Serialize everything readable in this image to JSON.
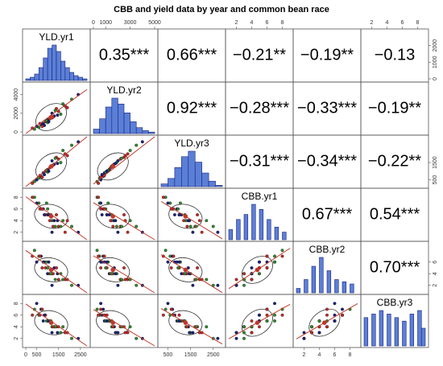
{
  "chart_data": {
    "type": "pairs",
    "title": "CBB and yield data by year and common bean race",
    "variables": [
      "YLD.yr1",
      "YLD.yr2",
      "YLD.yr3",
      "CBB.yr1",
      "CBB.yr2",
      "CBB.yr3"
    ],
    "ranges": [
      [
        0,
        2800
      ],
      [
        0,
        5000
      ],
      [
        200,
        2900
      ],
      [
        1,
        9
      ],
      [
        1,
        9
      ],
      [
        1,
        9
      ]
    ],
    "ticks_x": [
      [
        0,
        500,
        1500,
        2500
      ],
      [
        0,
        1000,
        3000,
        5000
      ],
      [
        500,
        1500,
        2500
      ],
      [
        2,
        4,
        6,
        8
      ],
      [
        2,
        4,
        6,
        8
      ],
      [
        2,
        4,
        6,
        8
      ]
    ],
    "ticks_y": [
      [
        0,
        1000,
        2000
      ],
      [
        0,
        2000,
        4000
      ],
      [
        500,
        1500
      ],
      [
        2,
        4,
        6,
        8
      ],
      [
        2,
        4,
        6
      ],
      [
        2,
        4,
        6,
        8
      ]
    ],
    "correlations": [
      [
        {
          "value": 0.35,
          "label": "0.35***"
        },
        {
          "value": 0.66,
          "label": "0.66***"
        },
        {
          "value": -0.21,
          "label": "−0.21**"
        },
        {
          "value": -0.19,
          "label": "−0.19**"
        },
        {
          "value": -0.13,
          "label": "−0.13"
        }
      ],
      [
        {
          "value": 0.92,
          "label": "0.92***"
        },
        {
          "value": -0.28,
          "label": "−0.28***"
        },
        {
          "value": -0.33,
          "label": "−0.33***"
        },
        {
          "value": -0.19,
          "label": "−0.19**"
        }
      ],
      [
        {
          "value": -0.31,
          "label": "−0.31***"
        },
        {
          "value": -0.34,
          "label": "−0.34***"
        },
        {
          "value": -0.22,
          "label": "−0.22**"
        }
      ],
      [
        {
          "value": 0.67,
          "label": "0.67***"
        },
        {
          "value": 0.54,
          "label": "0.54***"
        }
      ],
      [
        {
          "value": 0.7,
          "label": "0.70***"
        }
      ]
    ],
    "histograms": [
      {
        "bins": [
          0,
          200,
          400,
          600,
          800,
          1000,
          1200,
          1400,
          1600,
          1800,
          2000,
          2200,
          2400,
          2600,
          2800
        ],
        "counts": [
          1,
          2,
          4,
          8,
          14,
          20,
          22,
          18,
          12,
          8,
          5,
          3,
          2,
          1
        ]
      },
      {
        "bins": [
          0,
          500,
          1000,
          1500,
          2000,
          2500,
          3000,
          3500,
          4000,
          4500,
          5000
        ],
        "counts": [
          3,
          10,
          18,
          24,
          20,
          14,
          8,
          4,
          2,
          1
        ]
      },
      {
        "bins": [
          200,
          500,
          800,
          1100,
          1400,
          1700,
          2000,
          2300,
          2600,
          2900
        ],
        "counts": [
          2,
          6,
          14,
          22,
          26,
          18,
          10,
          4,
          1
        ]
      },
      {
        "bins": [
          1,
          1.5,
          2,
          2.5,
          3,
          3.5,
          4,
          4.5,
          5,
          5.5,
          6,
          6.5,
          7,
          7.5,
          8,
          8.5,
          9
        ],
        "counts": [
          4,
          0,
          8,
          0,
          10,
          0,
          14,
          0,
          12,
          0,
          8,
          0,
          5,
          0,
          3,
          0
        ]
      },
      {
        "bins": [
          1,
          1.5,
          2,
          2.5,
          3,
          3.5,
          4,
          4.5,
          5,
          5.5,
          6,
          6.5,
          7,
          7.5,
          8,
          8.5,
          9
        ],
        "counts": [
          2,
          0,
          6,
          0,
          12,
          0,
          16,
          0,
          10,
          0,
          6,
          0,
          5,
          0,
          4,
          0
        ]
      },
      {
        "bins": [
          1,
          1.5,
          2,
          2.5,
          3,
          3.5,
          4,
          4.5,
          5,
          5.5,
          6,
          6.5,
          7,
          7.5,
          8,
          8.5,
          9
        ],
        "counts": [
          8,
          0,
          9,
          0,
          10,
          0,
          9,
          0,
          8,
          0,
          7,
          0,
          9,
          0,
          10,
          5
        ]
      }
    ],
    "observations": [
      [
        1200,
        1500,
        1300,
        4,
        4,
        4
      ],
      [
        800,
        900,
        900,
        6,
        6,
        5
      ],
      [
        1500,
        2200,
        1700,
        3,
        3,
        4
      ],
      [
        600,
        500,
        600,
        7,
        7,
        6
      ],
      [
        1000,
        1300,
        1100,
        5,
        4,
        5
      ],
      [
        1800,
        2800,
        2000,
        2,
        3,
        3
      ],
      [
        400,
        300,
        400,
        8,
        8,
        7
      ],
      [
        1300,
        1700,
        1400,
        4,
        5,
        4
      ],
      [
        900,
        1100,
        1000,
        5,
        5,
        6
      ],
      [
        2100,
        3500,
        2500,
        3,
        2,
        2
      ],
      [
        700,
        800,
        700,
        6,
        7,
        7
      ],
      [
        1100,
        1400,
        1200,
        4,
        4,
        5
      ],
      [
        1600,
        1900,
        1500,
        3,
        4,
        3
      ],
      [
        500,
        600,
        500,
        7,
        6,
        8
      ],
      [
        1400,
        2500,
        1800,
        5,
        5,
        4
      ],
      [
        1000,
        1000,
        950,
        6,
        5,
        5
      ],
      [
        1200,
        2000,
        1600,
        2,
        2,
        3
      ],
      [
        300,
        400,
        300,
        8,
        7,
        6
      ],
      [
        1700,
        3000,
        2200,
        4,
        3,
        4
      ],
      [
        850,
        700,
        800,
        5,
        6,
        6
      ],
      [
        1250,
        1600,
        1350,
        3,
        4,
        4
      ],
      [
        950,
        1200,
        1050,
        7,
        6,
        5
      ],
      [
        2400,
        4000,
        2700,
        2,
        2,
        2
      ],
      [
        650,
        900,
        750,
        6,
        7,
        6
      ],
      [
        1150,
        1500,
        1250,
        5,
        4,
        5
      ],
      [
        1450,
        1800,
        1450,
        4,
        4,
        3
      ],
      [
        750,
        600,
        650,
        6,
        5,
        7
      ],
      [
        1350,
        2300,
        1750,
        3,
        3,
        4
      ],
      [
        1050,
        1100,
        1000,
        5,
        6,
        5
      ],
      [
        1900,
        2600,
        1900,
        4,
        3,
        3
      ]
    ],
    "point_colors": [
      "#2e8b2e",
      "#1a237e",
      "#c62828"
    ],
    "hist_color": "#5b7fd6",
    "fit_color": "#c0392b"
  }
}
